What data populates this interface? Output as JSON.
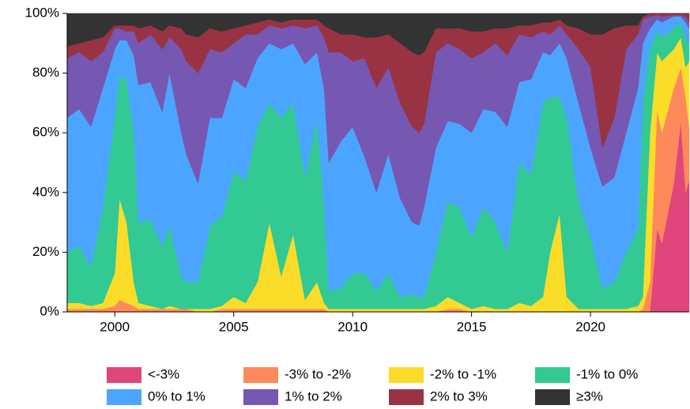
{
  "chart_data": {
    "type": "stacked_area",
    "x": [
      1998.0,
      1998.5,
      1999.0,
      1999.5,
      2000.0,
      2000.2,
      2000.5,
      2000.8,
      2001.0,
      2001.5,
      2002.0,
      2002.3,
      2002.8,
      2003.0,
      2003.5,
      2004.0,
      2004.5,
      2005.0,
      2005.5,
      2006.0,
      2006.5,
      2007.0,
      2007.5,
      2008.0,
      2008.5,
      2008.8,
      2009.0,
      2009.5,
      2010.0,
      2010.5,
      2011.0,
      2011.5,
      2012.0,
      2012.5,
      2012.8,
      2013.0,
      2013.5,
      2014.0,
      2014.5,
      2015.0,
      2015.5,
      2016.0,
      2016.5,
      2017.0,
      2017.5,
      2018.0,
      2018.3,
      2018.7,
      2019.0,
      2019.5,
      2020.0,
      2020.5,
      2021.0,
      2021.5,
      2022.0,
      2022.2,
      2022.5,
      2022.8,
      2023.0,
      2023.5,
      2023.8,
      2024.0,
      2024.15
    ],
    "series": [
      {
        "name": "<-3%",
        "color": "#e0457b",
        "values": [
          0,
          0,
          0,
          0,
          0,
          0,
          0,
          0,
          0,
          0,
          0,
          0,
          0,
          0,
          0,
          0,
          0,
          0,
          0,
          0,
          0,
          0,
          0,
          0,
          0,
          0,
          0,
          0,
          0,
          0,
          0,
          0,
          0,
          0,
          0,
          0,
          0,
          0,
          0,
          0,
          0,
          0,
          0,
          0,
          0,
          0,
          0,
          0,
          0,
          0,
          0,
          0,
          0,
          0,
          0,
          0,
          0,
          28,
          23,
          43,
          64,
          40,
          44
        ]
      },
      {
        "name": "-3% to -2%",
        "color": "#fe8a5c",
        "values": [
          1,
          1,
          1,
          1,
          2,
          4,
          3,
          2,
          1,
          1,
          1,
          1,
          1,
          1,
          0,
          0,
          1,
          1,
          1,
          1,
          1,
          1,
          1,
          1,
          1,
          1,
          0,
          0,
          0,
          0,
          0,
          0,
          0,
          0,
          0,
          0,
          0,
          1,
          1,
          0,
          0,
          0,
          0,
          0,
          0,
          0,
          0,
          0,
          0,
          0,
          0,
          0,
          0,
          0,
          0,
          1,
          10,
          40,
          37,
          32,
          18,
          32,
          18
        ]
      },
      {
        "name": "-2% to -1%",
        "color": "#fbdc28",
        "values": [
          2,
          2,
          1,
          2,
          11,
          34,
          27,
          8,
          2,
          1,
          0,
          1,
          0,
          0,
          1,
          1,
          1,
          4,
          2,
          9,
          29,
          11,
          25,
          3,
          9,
          2,
          1,
          1,
          1,
          1,
          1,
          1,
          1,
          1,
          1,
          1,
          2,
          4,
          2,
          1,
          2,
          1,
          1,
          3,
          2,
          5,
          20,
          33,
          5,
          1,
          1,
          1,
          1,
          1,
          2,
          4,
          50,
          19,
          24,
          13,
          10,
          10,
          22
        ]
      },
      {
        "name": "-1% to 0%",
        "color": "#32c993",
        "values": [
          17,
          19,
          13,
          32,
          52,
          41,
          48,
          50,
          27,
          29,
          21,
          27,
          11,
          9,
          9,
          28,
          30,
          42,
          41,
          52,
          40,
          53,
          44,
          41,
          55,
          32,
          6,
          7,
          12,
          12,
          6,
          12,
          4,
          5,
          4,
          4,
          18,
          32,
          32,
          24,
          33,
          29,
          19,
          47,
          44,
          65,
          52,
          39,
          60,
          36,
          24,
          7,
          9,
          19,
          26,
          65,
          28,
          7,
          8,
          7,
          5,
          10,
          6
        ]
      },
      {
        "name": "0% to 1%",
        "color": "#4ba5ff",
        "values": [
          45,
          46,
          47,
          40,
          23,
          12,
          13,
          26,
          46,
          46,
          45,
          51,
          48,
          43,
          33,
          36,
          33,
          31,
          31,
          23,
          20,
          23,
          20,
          38,
          22,
          40,
          43,
          49,
          49,
          39,
          33,
          40,
          33,
          24,
          24,
          30,
          35,
          27,
          28,
          35,
          33,
          37,
          42,
          27,
          32,
          17,
          14,
          18,
          20,
          33,
          30,
          34,
          35,
          40,
          47,
          20,
          7,
          4,
          5,
          4,
          2,
          5,
          5
        ]
      },
      {
        "name": "1% to 2%",
        "color": "#7657b2",
        "values": [
          20,
          19,
          22,
          12,
          7,
          4,
          3,
          8,
          14,
          16,
          21,
          12,
          28,
          31,
          37,
          23,
          22,
          12,
          18,
          8,
          6,
          7,
          6,
          12,
          9,
          17,
          37,
          30,
          22,
          33,
          35,
          29,
          32,
          32,
          31,
          28,
          32,
          26,
          25,
          25,
          19,
          23,
          24,
          16,
          14,
          7,
          7,
          6,
          8,
          18,
          27,
          13,
          20,
          28,
          18,
          8,
          4,
          1.5,
          2,
          0.5,
          0.5,
          2,
          2
        ]
      },
      {
        "name": "2% to 3%",
        "color": "#993344",
        "values": [
          4,
          3,
          7,
          5,
          1,
          1,
          2,
          2,
          5,
          3,
          6,
          4,
          7,
          9,
          12,
          7,
          7,
          5,
          3,
          4,
          2,
          2,
          2,
          3,
          2,
          4,
          8,
          6,
          9,
          7,
          17,
          11,
          20,
          25,
          26,
          24,
          8,
          5,
          7,
          9,
          7,
          5,
          9,
          3,
          4,
          3,
          4,
          2,
          3,
          7,
          11,
          38,
          30,
          8,
          3,
          1,
          1,
          0.5,
          1,
          0.5,
          0.5,
          1,
          3
        ]
      },
      {
        "name": "≥3%",
        "color": "#333333",
        "values": [
          11,
          10,
          9,
          8,
          4,
          4,
          4,
          4,
          5,
          4,
          6,
          4,
          5,
          7,
          8,
          5,
          6,
          5,
          4,
          3,
          2,
          3,
          2,
          2,
          2,
          4,
          5,
          7,
          7,
          8,
          8,
          7,
          10,
          13,
          14,
          13,
          5,
          5,
          5,
          6,
          6,
          5,
          5,
          4,
          4,
          3,
          3,
          2,
          4,
          5,
          7,
          7,
          5,
          4,
          4,
          1,
          0,
          0,
          0,
          0,
          0,
          0,
          0
        ]
      }
    ],
    "xlim": [
      1998,
      2024.15
    ],
    "xticks": [
      2000,
      2005,
      2010,
      2015,
      2020
    ],
    "ylim": [
      0,
      100
    ],
    "yticks": [
      {
        "value": 0,
        "label": "0%"
      },
      {
        "value": 20,
        "label": "20%"
      },
      {
        "value": 40,
        "label": "40%"
      },
      {
        "value": 60,
        "label": "60%"
      },
      {
        "value": 80,
        "label": "80%"
      },
      {
        "value": 100,
        "label": "100%"
      }
    ],
    "legend": "bottom"
  }
}
